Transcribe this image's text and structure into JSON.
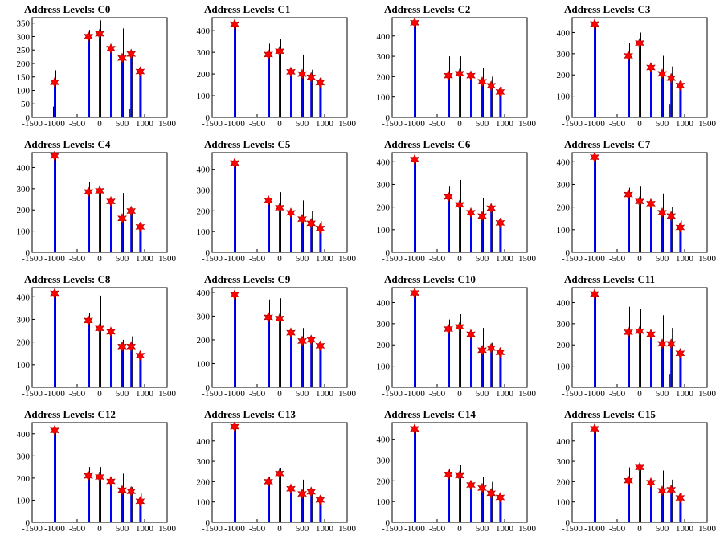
{
  "colors": {
    "hist_blue": "#0000ff",
    "hist_black": "#000000",
    "marker_red": "#ff0000",
    "frame": "#000000"
  },
  "chart_data": [
    {
      "title": "Address Levels: C0",
      "type": "bar",
      "xticks": [
        -1500,
        -1000,
        -500,
        0,
        500,
        1000,
        1500
      ],
      "xlim": [
        -1500,
        1500
      ],
      "yticks": [
        0,
        50,
        100,
        150,
        200,
        250,
        300,
        350
      ],
      "ylim": [
        0,
        370
      ],
      "peaks": [
        {
          "x": -1000,
          "y": 130,
          "bar": 175,
          "dark": 40
        },
        {
          "x": -250,
          "y": 300,
          "bar": 325,
          "dark": 0
        },
        {
          "x": 0,
          "y": 310,
          "bar": 360,
          "dark": 0
        },
        {
          "x": 250,
          "y": 255,
          "bar": 340,
          "dark": 0
        },
        {
          "x": 500,
          "y": 220,
          "bar": 330,
          "dark": 35
        },
        {
          "x": 700,
          "y": 235,
          "bar": 245,
          "dark": 30
        },
        {
          "x": 900,
          "y": 170,
          "bar": 180,
          "dark": 0
        }
      ]
    },
    {
      "title": "Address Levels: C1",
      "type": "bar",
      "xticks": [
        -1500,
        -1000,
        -500,
        0,
        500,
        1000,
        1500
      ],
      "xlim": [
        -1500,
        1500
      ],
      "yticks": [
        0,
        100,
        200,
        300,
        400
      ],
      "ylim": [
        0,
        460
      ],
      "peaks": [
        {
          "x": -1000,
          "y": 430,
          "bar": 435,
          "dark": 0
        },
        {
          "x": -250,
          "y": 290,
          "bar": 340,
          "dark": 0
        },
        {
          "x": 0,
          "y": 305,
          "bar": 360,
          "dark": 0
        },
        {
          "x": 250,
          "y": 210,
          "bar": 330,
          "dark": 0
        },
        {
          "x": 500,
          "y": 200,
          "bar": 290,
          "dark": 30
        },
        {
          "x": 700,
          "y": 185,
          "bar": 220,
          "dark": 0
        },
        {
          "x": 900,
          "y": 160,
          "bar": 180,
          "dark": 0
        }
      ]
    },
    {
      "title": "Address Levels: C2",
      "type": "bar",
      "xticks": [
        -1500,
        -1000,
        -500,
        0,
        500,
        1000,
        1500
      ],
      "xlim": [
        -1500,
        1500
      ],
      "yticks": [
        0,
        100,
        200,
        300,
        400
      ],
      "ylim": [
        0,
        490
      ],
      "peaks": [
        {
          "x": -1000,
          "y": 465,
          "bar": 470,
          "dark": 0
        },
        {
          "x": -250,
          "y": 205,
          "bar": 300,
          "dark": 0
        },
        {
          "x": 0,
          "y": 215,
          "bar": 300,
          "dark": 0
        },
        {
          "x": 250,
          "y": 205,
          "bar": 295,
          "dark": 0
        },
        {
          "x": 500,
          "y": 175,
          "bar": 245,
          "dark": 0
        },
        {
          "x": 700,
          "y": 155,
          "bar": 200,
          "dark": 0
        },
        {
          "x": 900,
          "y": 125,
          "bar": 150,
          "dark": 0
        }
      ]
    },
    {
      "title": "Address Levels: C3",
      "type": "bar",
      "xticks": [
        -1500,
        -1000,
        -500,
        0,
        500,
        1000,
        1500
      ],
      "xlim": [
        -1500,
        1500
      ],
      "yticks": [
        0,
        100,
        200,
        300,
        400
      ],
      "ylim": [
        0,
        470
      ],
      "peaks": [
        {
          "x": -1000,
          "y": 440,
          "bar": 445,
          "dark": 0
        },
        {
          "x": -250,
          "y": 290,
          "bar": 350,
          "dark": 0
        },
        {
          "x": 0,
          "y": 350,
          "bar": 400,
          "dark": 0
        },
        {
          "x": 250,
          "y": 235,
          "bar": 380,
          "dark": 0
        },
        {
          "x": 500,
          "y": 205,
          "bar": 290,
          "dark": 0
        },
        {
          "x": 700,
          "y": 185,
          "bar": 240,
          "dark": 60
        },
        {
          "x": 900,
          "y": 150,
          "bar": 170,
          "dark": 0
        }
      ]
    },
    {
      "title": "Address Levels: C4",
      "type": "bar",
      "xticks": [
        -1500,
        -1000,
        -500,
        0,
        500,
        1000,
        1500
      ],
      "xlim": [
        -1500,
        1500
      ],
      "yticks": [
        0,
        100,
        200,
        300,
        400
      ],
      "ylim": [
        0,
        470
      ],
      "peaks": [
        {
          "x": -1000,
          "y": 455,
          "bar": 460,
          "dark": 0
        },
        {
          "x": -250,
          "y": 285,
          "bar": 330,
          "dark": 0
        },
        {
          "x": 0,
          "y": 290,
          "bar": 300,
          "dark": 0
        },
        {
          "x": 250,
          "y": 240,
          "bar": 320,
          "dark": 0
        },
        {
          "x": 500,
          "y": 160,
          "bar": 280,
          "dark": 0
        },
        {
          "x": 700,
          "y": 195,
          "bar": 200,
          "dark": 0
        },
        {
          "x": 900,
          "y": 120,
          "bar": 140,
          "dark": 0
        }
      ]
    },
    {
      "title": "Address Levels: C5",
      "type": "bar",
      "xticks": [
        -1500,
        -1000,
        -500,
        0,
        500,
        1000,
        1500
      ],
      "xlim": [
        -1500,
        1500
      ],
      "yticks": [
        0,
        100,
        200,
        300,
        400
      ],
      "ylim": [
        0,
        480
      ],
      "peaks": [
        {
          "x": -1000,
          "y": 430,
          "bar": 440,
          "dark": 0
        },
        {
          "x": -250,
          "y": 250,
          "bar": 260,
          "dark": 0
        },
        {
          "x": 0,
          "y": 215,
          "bar": 290,
          "dark": 0
        },
        {
          "x": 250,
          "y": 190,
          "bar": 280,
          "dark": 0
        },
        {
          "x": 500,
          "y": 160,
          "bar": 250,
          "dark": 0
        },
        {
          "x": 700,
          "y": 140,
          "bar": 200,
          "dark": 0
        },
        {
          "x": 900,
          "y": 115,
          "bar": 150,
          "dark": 0
        }
      ]
    },
    {
      "title": "Address Levels: C6",
      "type": "bar",
      "xticks": [
        -1500,
        -1000,
        -500,
        0,
        500,
        1000,
        1500
      ],
      "xlim": [
        -1500,
        1500
      ],
      "yticks": [
        0,
        100,
        200,
        300,
        400
      ],
      "ylim": [
        0,
        440
      ],
      "peaks": [
        {
          "x": -1000,
          "y": 410,
          "bar": 415,
          "dark": 0
        },
        {
          "x": -250,
          "y": 245,
          "bar": 290,
          "dark": 0
        },
        {
          "x": 0,
          "y": 210,
          "bar": 320,
          "dark": 0
        },
        {
          "x": 250,
          "y": 175,
          "bar": 270,
          "dark": 0
        },
        {
          "x": 500,
          "y": 160,
          "bar": 240,
          "dark": 0
        },
        {
          "x": 700,
          "y": 195,
          "bar": 200,
          "dark": 0
        },
        {
          "x": 900,
          "y": 130,
          "bar": 150,
          "dark": 0
        }
      ]
    },
    {
      "title": "Address Levels: C7",
      "type": "bar",
      "xticks": [
        -1500,
        -1000,
        -500,
        0,
        500,
        1000,
        1500
      ],
      "xlim": [
        -1500,
        1500
      ],
      "yticks": [
        0,
        100,
        200,
        300,
        400
      ],
      "ylim": [
        0,
        440
      ],
      "peaks": [
        {
          "x": -1000,
          "y": 420,
          "bar": 425,
          "dark": 0
        },
        {
          "x": -250,
          "y": 255,
          "bar": 285,
          "dark": 0
        },
        {
          "x": 0,
          "y": 225,
          "bar": 290,
          "dark": 0
        },
        {
          "x": 250,
          "y": 215,
          "bar": 300,
          "dark": 0
        },
        {
          "x": 500,
          "y": 175,
          "bar": 260,
          "dark": 80
        },
        {
          "x": 700,
          "y": 160,
          "bar": 200,
          "dark": 0
        },
        {
          "x": 900,
          "y": 110,
          "bar": 140,
          "dark": 0
        }
      ]
    },
    {
      "title": "Address Levels: C8",
      "type": "bar",
      "xticks": [
        -1500,
        -1000,
        -500,
        0,
        500,
        1000,
        1500
      ],
      "xlim": [
        -1500,
        1500
      ],
      "yticks": [
        0,
        100,
        200,
        300,
        400
      ],
      "ylim": [
        0,
        440
      ],
      "peaks": [
        {
          "x": -1000,
          "y": 415,
          "bar": 420,
          "dark": 0
        },
        {
          "x": -250,
          "y": 295,
          "bar": 330,
          "dark": 0
        },
        {
          "x": 0,
          "y": 260,
          "bar": 405,
          "dark": 0
        },
        {
          "x": 250,
          "y": 245,
          "bar": 290,
          "dark": 0
        },
        {
          "x": 500,
          "y": 180,
          "bar": 210,
          "dark": 0
        },
        {
          "x": 700,
          "y": 180,
          "bar": 225,
          "dark": 0
        },
        {
          "x": 900,
          "y": 140,
          "bar": 150,
          "dark": 0
        }
      ]
    },
    {
      "title": "Address Levels: C9",
      "type": "bar",
      "xticks": [
        -1500,
        -1000,
        -500,
        0,
        500,
        1000,
        1500
      ],
      "xlim": [
        -1500,
        1500
      ],
      "yticks": [
        0,
        100,
        200,
        300,
        400
      ],
      "ylim": [
        0,
        420
      ],
      "peaks": [
        {
          "x": -1000,
          "y": 390,
          "bar": 395,
          "dark": 0
        },
        {
          "x": -250,
          "y": 295,
          "bar": 370,
          "dark": 0
        },
        {
          "x": 0,
          "y": 290,
          "bar": 375,
          "dark": 0
        },
        {
          "x": 250,
          "y": 230,
          "bar": 360,
          "dark": 0
        },
        {
          "x": 500,
          "y": 195,
          "bar": 250,
          "dark": 0
        },
        {
          "x": 700,
          "y": 200,
          "bar": 200,
          "dark": 0
        },
        {
          "x": 900,
          "y": 175,
          "bar": 185,
          "dark": 0
        }
      ]
    },
    {
      "title": "Address Levels: C10",
      "type": "bar",
      "xticks": [
        -1500,
        -1000,
        -500,
        0,
        500,
        1000,
        1500
      ],
      "xlim": [
        -1500,
        1500
      ],
      "yticks": [
        0,
        100,
        200,
        300,
        400
      ],
      "ylim": [
        0,
        470
      ],
      "peaks": [
        {
          "x": -1000,
          "y": 445,
          "bar": 450,
          "dark": 0
        },
        {
          "x": -250,
          "y": 275,
          "bar": 320,
          "dark": 0
        },
        {
          "x": 0,
          "y": 285,
          "bar": 345,
          "dark": 0
        },
        {
          "x": 250,
          "y": 250,
          "bar": 350,
          "dark": 0
        },
        {
          "x": 500,
          "y": 175,
          "bar": 280,
          "dark": 0
        },
        {
          "x": 700,
          "y": 185,
          "bar": 210,
          "dark": 0
        },
        {
          "x": 900,
          "y": 165,
          "bar": 175,
          "dark": 0
        }
      ]
    },
    {
      "title": "Address Levels: C11",
      "type": "bar",
      "xticks": [
        -1500,
        -1000,
        -500,
        0,
        500,
        1000,
        1500
      ],
      "xlim": [
        -1500,
        1500
      ],
      "yticks": [
        0,
        100,
        200,
        300,
        400
      ],
      "ylim": [
        0,
        470
      ],
      "peaks": [
        {
          "x": -1000,
          "y": 440,
          "bar": 445,
          "dark": 0
        },
        {
          "x": -250,
          "y": 260,
          "bar": 380,
          "dark": 0
        },
        {
          "x": 0,
          "y": 265,
          "bar": 370,
          "dark": 0
        },
        {
          "x": 250,
          "y": 250,
          "bar": 360,
          "dark": 0
        },
        {
          "x": 500,
          "y": 205,
          "bar": 340,
          "dark": 0
        },
        {
          "x": 700,
          "y": 205,
          "bar": 280,
          "dark": 60
        },
        {
          "x": 900,
          "y": 160,
          "bar": 170,
          "dark": 0
        }
      ]
    },
    {
      "title": "Address Levels: C12",
      "type": "bar",
      "xticks": [
        -1500,
        -1000,
        -500,
        0,
        500,
        1000,
        1500
      ],
      "xlim": [
        -1500,
        1500
      ],
      "yticks": [
        0,
        100,
        200,
        300,
        400
      ],
      "ylim": [
        0,
        450
      ],
      "peaks": [
        {
          "x": -1000,
          "y": 415,
          "bar": 420,
          "dark": 0
        },
        {
          "x": -250,
          "y": 210,
          "bar": 250,
          "dark": 0
        },
        {
          "x": 0,
          "y": 205,
          "bar": 250,
          "dark": 0
        },
        {
          "x": 250,
          "y": 185,
          "bar": 245,
          "dark": 0
        },
        {
          "x": 500,
          "y": 145,
          "bar": 220,
          "dark": 0
        },
        {
          "x": 700,
          "y": 140,
          "bar": 160,
          "dark": 0
        },
        {
          "x": 900,
          "y": 95,
          "bar": 130,
          "dark": 0
        }
      ]
    },
    {
      "title": "Address Levels: C13",
      "type": "bar",
      "xticks": [
        -1500,
        -1000,
        -500,
        0,
        500,
        1000,
        1500
      ],
      "xlim": [
        -1500,
        1500
      ],
      "yticks": [
        0,
        100,
        200,
        300,
        400
      ],
      "ylim": [
        0,
        490
      ],
      "peaks": [
        {
          "x": -1000,
          "y": 470,
          "bar": 475,
          "dark": 0
        },
        {
          "x": -250,
          "y": 200,
          "bar": 225,
          "dark": 0
        },
        {
          "x": 0,
          "y": 240,
          "bar": 265,
          "dark": 0
        },
        {
          "x": 250,
          "y": 165,
          "bar": 250,
          "dark": 0
        },
        {
          "x": 500,
          "y": 140,
          "bar": 210,
          "dark": 0
        },
        {
          "x": 700,
          "y": 150,
          "bar": 165,
          "dark": 0
        },
        {
          "x": 900,
          "y": 110,
          "bar": 130,
          "dark": 0
        }
      ]
    },
    {
      "title": "Address Levels: C14",
      "type": "bar",
      "xticks": [
        -1500,
        -1000,
        -500,
        0,
        500,
        1000,
        1500
      ],
      "xlim": [
        -1500,
        1500
      ],
      "yticks": [
        0,
        100,
        200,
        300,
        400
      ],
      "ylim": [
        0,
        480
      ],
      "peaks": [
        {
          "x": -1000,
          "y": 450,
          "bar": 455,
          "dark": 0
        },
        {
          "x": -250,
          "y": 230,
          "bar": 255,
          "dark": 0
        },
        {
          "x": 0,
          "y": 225,
          "bar": 275,
          "dark": 0
        },
        {
          "x": 250,
          "y": 180,
          "bar": 250,
          "dark": 0
        },
        {
          "x": 500,
          "y": 165,
          "bar": 220,
          "dark": 0
        },
        {
          "x": 700,
          "y": 140,
          "bar": 195,
          "dark": 0
        },
        {
          "x": 900,
          "y": 120,
          "bar": 130,
          "dark": 0
        }
      ]
    },
    {
      "title": "Address Levels: C15",
      "type": "bar",
      "xticks": [
        -1500,
        -1000,
        -500,
        0,
        500,
        1000,
        1500
      ],
      "xlim": [
        -1500,
        1500
      ],
      "yticks": [
        0,
        100,
        200,
        300,
        400
      ],
      "ylim": [
        0,
        490
      ],
      "peaks": [
        {
          "x": -1000,
          "y": 460,
          "bar": 465,
          "dark": 0
        },
        {
          "x": -250,
          "y": 205,
          "bar": 270,
          "dark": 0
        },
        {
          "x": 0,
          "y": 270,
          "bar": 270,
          "dark": 0
        },
        {
          "x": 250,
          "y": 195,
          "bar": 260,
          "dark": 0
        },
        {
          "x": 500,
          "y": 155,
          "bar": 255,
          "dark": 0
        },
        {
          "x": 700,
          "y": 160,
          "bar": 210,
          "dark": 0
        },
        {
          "x": 900,
          "y": 120,
          "bar": 145,
          "dark": 0
        }
      ]
    }
  ]
}
